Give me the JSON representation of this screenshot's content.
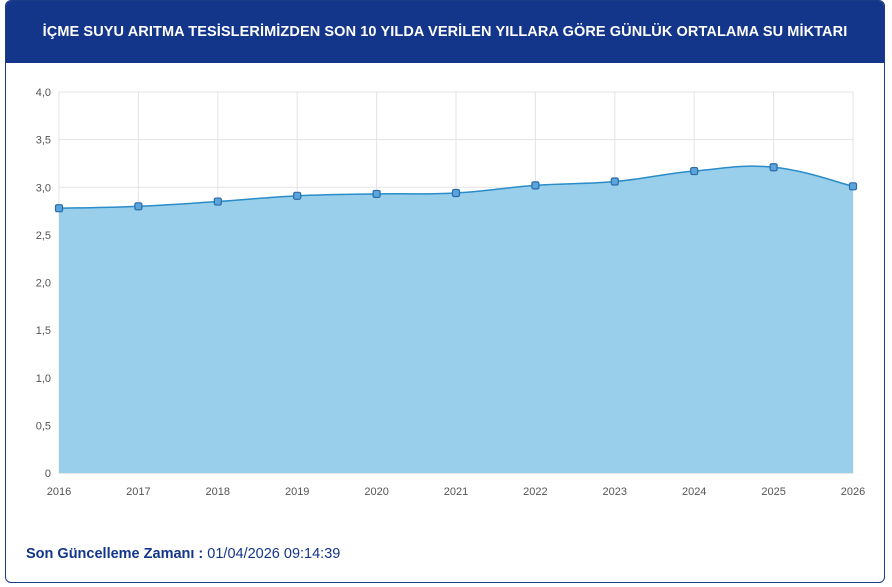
{
  "header": {
    "title": "İÇME SUYU ARITMA TESİSLERİMİZDEN SON 10 YILDA VERİLEN YILLARA GÖRE GÜNLÜK ORTALAMA SU MİKTARI"
  },
  "footer": {
    "label": "Son Güncelleme Zamanı :",
    "value": "01/04/2026 09:14:39"
  },
  "colors": {
    "header_bg": "#13358a",
    "area_fill": "#99cfeb",
    "line": "#2a8cc9",
    "marker_fill": "#5aa5dc",
    "marker_stroke": "#2d6aa8"
  },
  "chart_data": {
    "type": "area",
    "title": "",
    "xlabel": "",
    "ylabel": "",
    "x": [
      "2016",
      "2017",
      "2018",
      "2019",
      "2020",
      "2021",
      "2022",
      "2023",
      "2024",
      "2025",
      "2026"
    ],
    "series": [
      {
        "values": [
          2.78,
          2.8,
          2.85,
          2.91,
          2.93,
          2.94,
          3.02,
          3.06,
          3.17,
          3.21,
          3.01
        ]
      }
    ],
    "ylim": [
      0,
      4
    ],
    "yticks": [
      "0",
      "0,5",
      "1,0",
      "1,5",
      "2,0",
      "2,5",
      "3,0",
      "3,5",
      "4,0"
    ],
    "grid": true,
    "smooth": true
  }
}
